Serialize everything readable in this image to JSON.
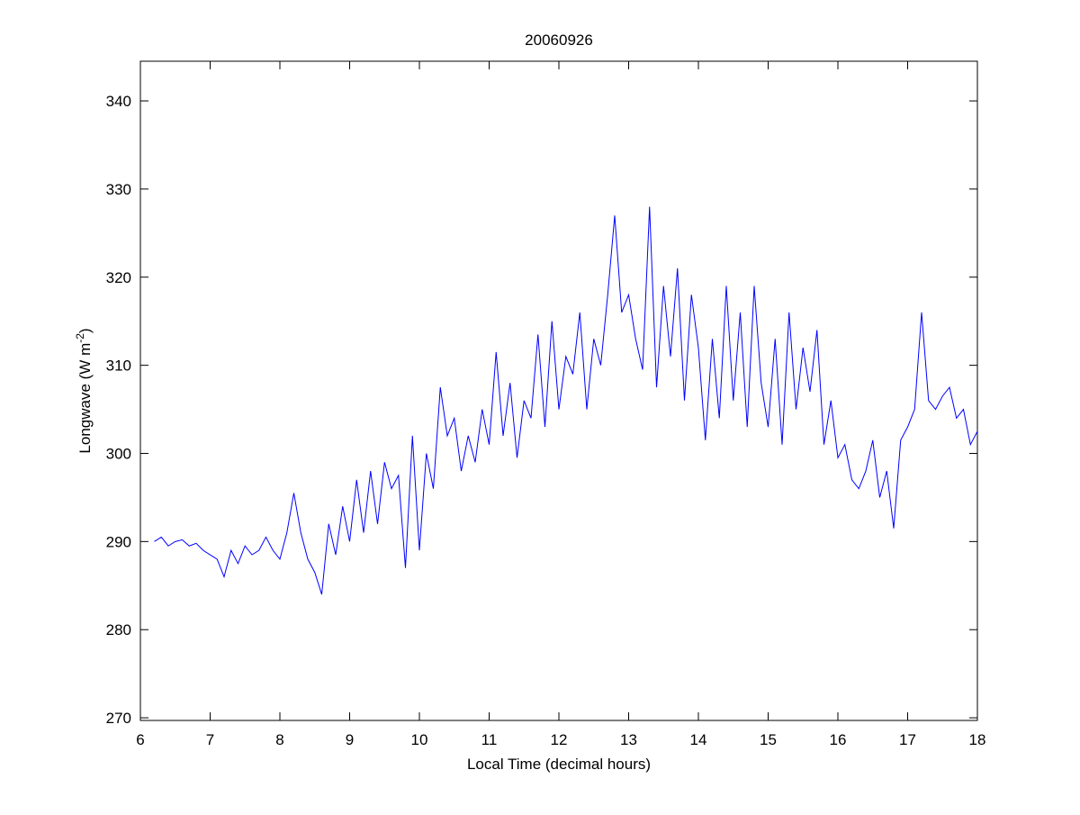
{
  "chart_data": {
    "type": "line",
    "title": "20060926",
    "xlabel": "Local Time (decimal hours)",
    "ylabel": {
      "text": "Longwave (W m",
      "superscript": "-2",
      "suffix": ")"
    },
    "color": "#0000ff",
    "xlim": [
      6,
      18
    ],
    "xticks": [
      6,
      7,
      8,
      9,
      10,
      11,
      12,
      13,
      14,
      15,
      16,
      17,
      18
    ],
    "ylim": [
      269.7,
      344.5
    ],
    "yticks": [
      270,
      280,
      290,
      300,
      310,
      320,
      330,
      340
    ],
    "x": [
      6.2,
      6.3,
      6.4,
      6.5,
      6.6,
      6.7,
      6.8,
      6.9,
      7.0,
      7.1,
      7.2,
      7.3,
      7.4,
      7.5,
      7.6,
      7.7,
      7.8,
      7.9,
      8.0,
      8.1,
      8.2,
      8.3,
      8.4,
      8.5,
      8.6,
      8.7,
      8.8,
      8.9,
      9.0,
      9.1,
      9.2,
      9.3,
      9.4,
      9.5,
      9.6,
      9.7,
      9.8,
      9.9,
      10.0,
      10.1,
      10.2,
      10.3,
      10.4,
      10.5,
      10.6,
      10.7,
      10.8,
      10.9,
      11.0,
      11.1,
      11.2,
      11.3,
      11.4,
      11.5,
      11.6,
      11.7,
      11.8,
      11.9,
      12.0,
      12.1,
      12.2,
      12.3,
      12.4,
      12.5,
      12.6,
      12.7,
      12.8,
      12.9,
      13.0,
      13.1,
      13.2,
      13.3,
      13.4,
      13.5,
      13.6,
      13.7,
      13.8,
      13.9,
      14.0,
      14.1,
      14.2,
      14.3,
      14.4,
      14.5,
      14.6,
      14.7,
      14.8,
      14.9,
      15.0,
      15.1,
      15.2,
      15.3,
      15.4,
      15.5,
      15.6,
      15.7,
      15.8,
      15.9,
      16.0,
      16.1,
      16.2,
      16.3,
      16.4,
      16.5,
      16.6,
      16.7,
      16.8,
      16.9,
      17.0,
      17.1,
      17.2,
      17.3,
      17.4,
      17.5,
      17.6,
      17.7,
      17.8,
      17.9,
      18.0
    ],
    "values": [
      290,
      290.5,
      289.5,
      290,
      290.2,
      289.5,
      289.8,
      289,
      288.5,
      288,
      286,
      289,
      287.5,
      289.5,
      288.5,
      289,
      290.5,
      289,
      288,
      291,
      295.5,
      291,
      288,
      286.5,
      284,
      292,
      288.5,
      294,
      290,
      297,
      291,
      298,
      292,
      299,
      296,
      297.5,
      287,
      302,
      289,
      300,
      296,
      307.5,
      302,
      304,
      298,
      302,
      299,
      305,
      301,
      311.5,
      302,
      308,
      299.5,
      306,
      304,
      313.5,
      303,
      315,
      305,
      311,
      309,
      316,
      305,
      313,
      310,
      318,
      327,
      316,
      318,
      313,
      309.5,
      328,
      307.5,
      319,
      311,
      321,
      306,
      318,
      312,
      301.5,
      313,
      304,
      319,
      306,
      316,
      303,
      319,
      308,
      303,
      313,
      301,
      316,
      305,
      312,
      307,
      314,
      301,
      306,
      299.5,
      301,
      297,
      296,
      298,
      301.5,
      295,
      298,
      291.5,
      301.5,
      303,
      305,
      316,
      306,
      305,
      306.5,
      307.5,
      304,
      305,
      301,
      302.5
    ]
  }
}
